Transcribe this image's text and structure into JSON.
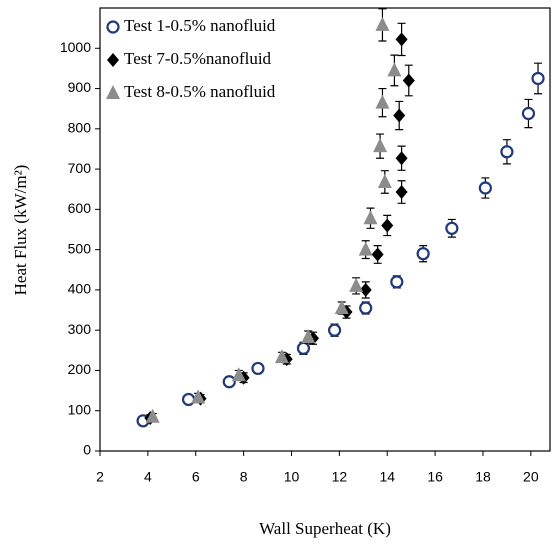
{
  "chart_data": {
    "type": "scatter",
    "x_label": "Wall Superheat (K)",
    "y_label": "Heat Flux (kW/m²)",
    "xlim": [
      2,
      20.8
    ],
    "xticks": [
      2,
      4,
      6,
      8,
      10,
      12,
      14,
      16,
      18,
      20
    ],
    "ylim": [
      0,
      1100
    ],
    "yticks": [
      0,
      100,
      200,
      300,
      400,
      500,
      600,
      700,
      800,
      900,
      1000
    ],
    "legend": "top-left",
    "series": [
      {
        "name": "Test 1-0.5% nanofluid",
        "color": "#1f3a7a",
        "marker": "circle",
        "x": [
          3.8,
          5.7,
          7.4,
          8.6,
          10.5,
          11.8,
          13.1,
          14.4,
          15.5,
          16.7,
          18.1,
          19.0,
          19.9,
          20.3
        ],
        "values": [
          75,
          128,
          172,
          205,
          255,
          300,
          355,
          420,
          490,
          553,
          653,
          743,
          838,
          925
        ],
        "errors": [
          10,
          10,
          12,
          12,
          15,
          15,
          15,
          15,
          20,
          22,
          25,
          30,
          35,
          38
        ]
      },
      {
        "name": "Test 7-0.5%nanofluid",
        "color": "#000000",
        "marker": "diamond",
        "x": [
          4.1,
          6.2,
          8.0,
          9.8,
          10.9,
          12.3,
          13.1,
          13.6,
          14.0,
          14.6,
          14.6,
          14.5,
          14.9,
          14.6
        ],
        "values": [
          82,
          130,
          182,
          228,
          280,
          345,
          400,
          488,
          560,
          643,
          727,
          833,
          920,
          1022
        ],
        "errors": [
          8,
          10,
          12,
          12,
          15,
          15,
          20,
          22,
          25,
          28,
          30,
          35,
          38,
          40
        ]
      },
      {
        "name": "Test 8-0.5% nanofluid",
        "color": "#8c8c8c",
        "marker": "triangle",
        "x": [
          4.2,
          6.1,
          7.8,
          9.6,
          10.7,
          12.1,
          12.7,
          13.1,
          13.3,
          13.9,
          13.7,
          13.8,
          14.3,
          13.8
        ],
        "values": [
          85,
          133,
          188,
          233,
          283,
          355,
          410,
          500,
          578,
          668,
          757,
          865,
          945,
          1058
        ],
        "errors": [
          8,
          10,
          12,
          12,
          15,
          15,
          20,
          22,
          25,
          28,
          30,
          35,
          38,
          40
        ]
      }
    ]
  }
}
